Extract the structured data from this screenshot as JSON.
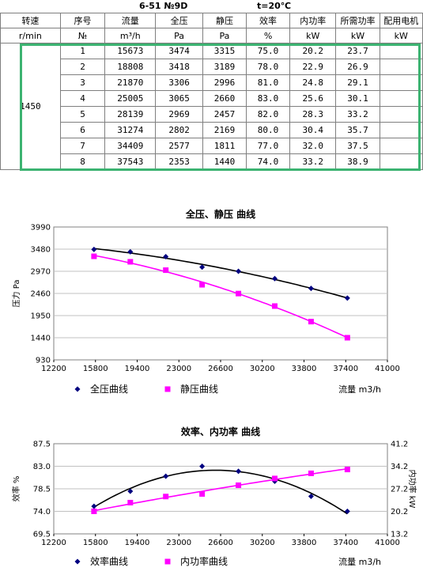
{
  "header": {
    "model": "6-51  №9D",
    "temperature": "t=20℃"
  },
  "table": {
    "columns": [
      "转速",
      "序号",
      "流量",
      "全压",
      "静压",
      "效率",
      "内功率",
      "所需功率",
      "配用电机"
    ],
    "units": [
      "r/min",
      "№",
      "m³/h",
      "Pa",
      "Pa",
      "%",
      "kW",
      "kW",
      "kW"
    ],
    "speed": "1450",
    "rows": [
      {
        "no": "1",
        "flow": "15673",
        "total": "3474",
        "static": "3315",
        "eff": "75.0",
        "inner": "20.2",
        "req": "23.7",
        "motor": ""
      },
      {
        "no": "2",
        "flow": "18808",
        "total": "3418",
        "static": "3189",
        "eff": "78.0",
        "inner": "22.9",
        "req": "26.9",
        "motor": ""
      },
      {
        "no": "3",
        "flow": "21870",
        "total": "3306",
        "static": "2996",
        "eff": "81.0",
        "inner": "24.8",
        "req": "29.1",
        "motor": ""
      },
      {
        "no": "4",
        "flow": "25005",
        "total": "3065",
        "static": "2660",
        "eff": "83.0",
        "inner": "25.6",
        "req": "30.1",
        "motor": ""
      },
      {
        "no": "5",
        "flow": "28139",
        "total": "2969",
        "static": "2457",
        "eff": "82.0",
        "inner": "28.3",
        "req": "33.2",
        "motor": ""
      },
      {
        "no": "6",
        "flow": "31274",
        "total": "2802",
        "static": "2169",
        "eff": "80.0",
        "inner": "30.4",
        "req": "35.7",
        "motor": ""
      },
      {
        "no": "7",
        "flow": "34409",
        "total": "2577",
        "static": "1811",
        "eff": "77.0",
        "inner": "32.0",
        "req": "37.5",
        "motor": ""
      },
      {
        "no": "8",
        "flow": "37543",
        "total": "2353",
        "static": "1440",
        "eff": "74.0",
        "inner": "33.2",
        "req": "38.9",
        "motor": ""
      }
    ]
  },
  "colors": {
    "navy": "#000080",
    "magenta": "#ff00ff",
    "green_frame": "#3cb371",
    "grid": "#c0c0c0"
  },
  "chart_data": [
    {
      "type": "scatter",
      "title": "全压、静压 曲线",
      "xlabel": "流量 m3/h",
      "ylabel": "压力 Pa",
      "xlim": [
        12200,
        41000
      ],
      "ylim": [
        930,
        3990
      ],
      "xticks": [
        12200,
        15800,
        19400,
        23000,
        26600,
        30200,
        33800,
        37400,
        41000
      ],
      "yticks": [
        930,
        1440,
        1950,
        2460,
        2970,
        3480,
        3990
      ],
      "grid": "horizontal",
      "legend_position": "bottom",
      "x": [
        15673,
        18808,
        21870,
        25005,
        28139,
        31274,
        34409,
        37543
      ],
      "series": [
        {
          "name": "全压曲线",
          "marker": "diamond",
          "color": "#000080",
          "line": "#000000",
          "values": [
            3474,
            3418,
            3306,
            3065,
            2969,
            2802,
            2577,
            2353
          ]
        },
        {
          "name": "静压曲线",
          "marker": "square",
          "color": "#ff00ff",
          "line": "#ff00ff",
          "values": [
            3315,
            3189,
            2996,
            2660,
            2457,
            2169,
            1811,
            1440
          ]
        }
      ]
    },
    {
      "type": "scatter",
      "title": "效率、内功率 曲线",
      "xlabel": "流量 m3/h",
      "ylabel": "效率 %",
      "y2label": "内功率 kW",
      "xlim": [
        12200,
        41000
      ],
      "ylim": [
        69.5,
        87.5
      ],
      "y2lim": [
        13.2,
        41.2
      ],
      "xticks": [
        12200,
        15800,
        19400,
        23000,
        26600,
        30200,
        33800,
        37400,
        41000
      ],
      "yticks": [
        "69.5",
        "74.0",
        "78.5",
        "83.0",
        "87.5"
      ],
      "y2ticks": [
        "13.2",
        "20.2",
        "27.2",
        "34.2",
        "41.2"
      ],
      "grid": "horizontal",
      "legend_position": "bottom",
      "x": [
        15673,
        18808,
        21870,
        25005,
        28139,
        31274,
        34409,
        37543
      ],
      "series": [
        {
          "name": "效率曲线",
          "axis": "left",
          "marker": "diamond",
          "color": "#000080",
          "line": "#000000",
          "values": [
            75.0,
            78.0,
            81.0,
            83.0,
            82.0,
            80.0,
            77.0,
            74.0
          ]
        },
        {
          "name": "内功率曲线",
          "axis": "right",
          "marker": "square",
          "color": "#ff00ff",
          "line": "#ff00ff",
          "values": [
            20.2,
            22.9,
            24.8,
            25.6,
            28.3,
            30.4,
            32.0,
            33.2
          ]
        }
      ]
    }
  ]
}
